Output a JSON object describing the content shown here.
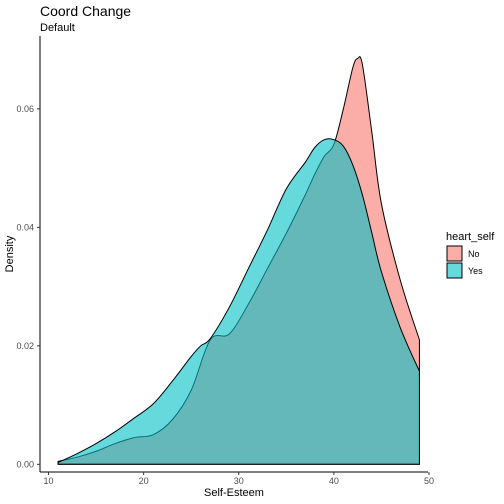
{
  "chart_data": {
    "type": "area",
    "title": "Coord Change",
    "subtitle": "Default",
    "xlabel": "Self-Esteem",
    "ylabel": "Density",
    "xlim": [
      9.1,
      49.9
    ],
    "ylim": [
      -0.0013,
      0.0723
    ],
    "x_ticks": [
      10,
      20,
      30,
      40,
      50
    ],
    "y_ticks": [
      0.0,
      0.02,
      0.04,
      0.06
    ],
    "y_tick_labels": [
      "0.00",
      "0.02",
      "0.04",
      "0.06"
    ],
    "grid": false,
    "legend": {
      "title": "heart_self",
      "position": "right",
      "entries": [
        "No",
        "Yes"
      ]
    },
    "series": [
      {
        "name": "No",
        "color": "#F8766D",
        "alpha": 0.6,
        "x": [
          11,
          13,
          15,
          17,
          19,
          21,
          23,
          25,
          27,
          29,
          31,
          33,
          35,
          37,
          38,
          39,
          40,
          41,
          42,
          42.5,
          43,
          44,
          45,
          47,
          49
        ],
        "y": [
          0.0005,
          0.0012,
          0.0022,
          0.0035,
          0.0045,
          0.005,
          0.0075,
          0.0125,
          0.021,
          0.022,
          0.027,
          0.033,
          0.039,
          0.0455,
          0.049,
          0.052,
          0.054,
          0.06,
          0.067,
          0.0685,
          0.0675,
          0.056,
          0.044,
          0.031,
          0.021
        ]
      },
      {
        "name": "Yes",
        "color": "#00BFC4",
        "alpha": 0.6,
        "x": [
          11,
          13,
          15,
          17,
          19,
          21,
          23,
          25,
          26,
          27,
          29,
          31,
          33,
          35,
          37,
          38,
          39,
          40,
          41,
          42,
          43,
          44,
          45,
          47,
          49
        ],
        "y": [
          0.0003,
          0.0018,
          0.0035,
          0.0055,
          0.0078,
          0.0102,
          0.014,
          0.0182,
          0.02,
          0.0212,
          0.0265,
          0.033,
          0.0395,
          0.0465,
          0.051,
          0.0535,
          0.0548,
          0.0548,
          0.0537,
          0.0505,
          0.0455,
          0.039,
          0.0325,
          0.023,
          0.0157
        ]
      }
    ]
  }
}
